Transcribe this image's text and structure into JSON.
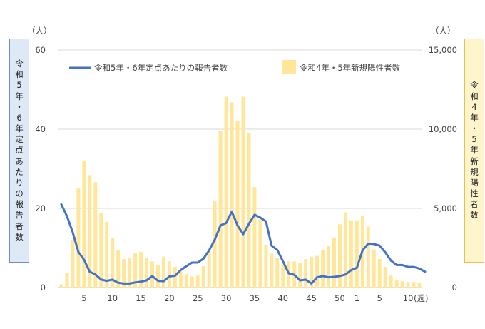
{
  "chart_data": {
    "type": "bar+line",
    "left_unit": "（人）",
    "right_unit": "（人）",
    "x_unit": "(週)",
    "left_axis_title": "令和5年・6年定点あたりの報告者数",
    "right_axis_title": "令和4年・5年新規陽性者数",
    "left_ylim": [
      0,
      60
    ],
    "left_ticks": [
      "0",
      "20",
      "40",
      "60"
    ],
    "right_ylim": [
      0,
      15000
    ],
    "right_ticks": [
      "0",
      "5,000",
      "10,000",
      "15,000"
    ],
    "x_tick_labels": [
      "5",
      "10",
      "15",
      "20",
      "25",
      "30",
      "35",
      "40",
      "45",
      "50",
      "1",
      "5",
      "10"
    ],
    "x_tick_index": [
      4,
      9,
      14,
      19,
      24,
      29,
      34,
      39,
      44,
      49,
      52,
      56,
      61
    ],
    "grid": true,
    "legend": [
      {
        "label": "令和5年・6年定点あたりの報告者数",
        "color": "#4472c4",
        "kind": "line"
      },
      {
        "label": "令和4年・5年新規陽性者数",
        "color": "#ffe699",
        "kind": "bar"
      }
    ],
    "series": [
      {
        "name": "令和4年・5年新規陽性者数",
        "axis": "right",
        "color": "#ffe699",
        "values": [
          200,
          950,
          3000,
          6250,
          8000,
          7100,
          6650,
          4700,
          4150,
          3150,
          2350,
          1800,
          1850,
          2150,
          2250,
          1850,
          1650,
          1450,
          1950,
          1650,
          1300,
          1000,
          850,
          700,
          750,
          1350,
          2300,
          5500,
          9900,
          12050,
          11700,
          10550,
          12050,
          9750,
          6350,
          4350,
          2700,
          2150,
          1850,
          1400,
          1650,
          1650,
          1550,
          1800,
          1950,
          2000,
          2350,
          2650,
          3150,
          4000,
          4750,
          4250,
          4250,
          4500,
          3850,
          2400,
          1800,
          1300,
          750,
          450,
          400,
          350,
          350,
          300
        ]
      },
      {
        "name": "令和5年・6年定点あたりの報告者数",
        "axis": "left",
        "color": "#4472c4",
        "values": [
          21,
          18,
          14,
          9,
          7,
          4,
          3.3,
          2,
          1.7,
          2,
          1.2,
          1,
          1,
          1.3,
          1.5,
          1.8,
          2.9,
          1.7,
          1.6,
          2.8,
          3,
          4.4,
          5.4,
          6.3,
          6.3,
          7.3,
          9.4,
          12.1,
          15.7,
          16.3,
          19.2,
          15.7,
          13.5,
          16.1,
          18.4,
          17.7,
          16.7,
          10.6,
          9.5,
          6.6,
          3.6,
          3.2,
          1.8,
          2,
          1,
          2.6,
          2.9,
          2.6,
          2.7,
          2.9,
          3.3,
          4.4,
          5,
          9.4,
          11.1,
          11,
          10.6,
          8.9,
          6.8,
          5.7,
          5.7,
          5.2,
          5.2,
          4.8,
          4
        ]
      }
    ]
  }
}
